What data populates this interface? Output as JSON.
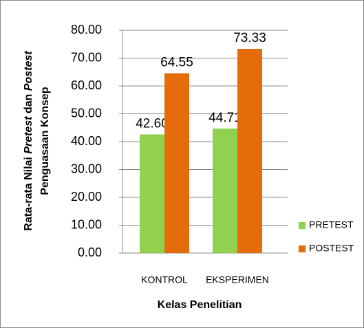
{
  "chart_data": {
    "type": "bar",
    "y_label": [
      [
        "Rata-rata Nilai",
        "Pretest",
        "dan",
        "Postest"
      ],
      [
        "Penguasaan Konsep"
      ]
    ],
    "y_label_italic": [
      [
        false,
        true,
        false,
        true
      ],
      [
        false
      ]
    ],
    "x_label": "Kelas Penelitian",
    "categories": [
      "KONTROL",
      "EKSPERIMEN"
    ],
    "series": [
      {
        "name": "PRETEST",
        "color": "#92d050",
        "values": [
          42.6,
          44.71
        ],
        "value_labels": [
          "42.60",
          "44.71"
        ]
      },
      {
        "name": "POSTEST",
        "color": "#e46c0a",
        "values": [
          64.55,
          73.33
        ],
        "value_labels": [
          "64.55",
          "73.33"
        ]
      }
    ],
    "ylim": [
      0,
      80
    ],
    "yticks": [
      {
        "value": 0,
        "label": "0.00"
      },
      {
        "value": 10,
        "label": "10.00"
      },
      {
        "value": 20,
        "label": "20.00"
      },
      {
        "value": 30,
        "label": "30.00"
      },
      {
        "value": 40,
        "label": "40.00"
      },
      {
        "value": 50,
        "label": "50.00"
      },
      {
        "value": 60,
        "label": "60.00"
      },
      {
        "value": 70,
        "label": "70.00"
      },
      {
        "value": 80,
        "label": "80.00"
      }
    ],
    "grid": true,
    "legend": "right"
  }
}
